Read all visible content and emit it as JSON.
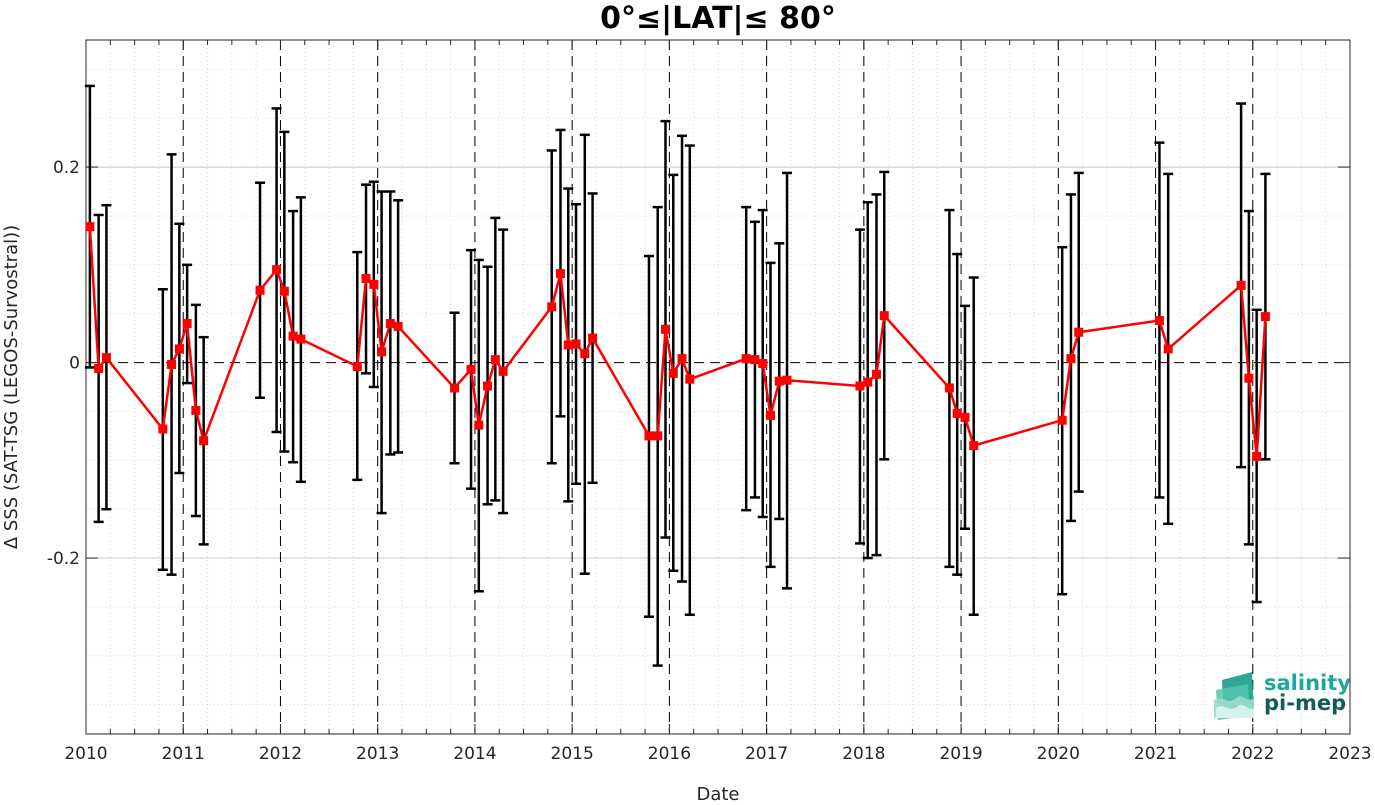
{
  "chart_data": {
    "type": "line",
    "title": "0°≤|LAT|≤ 80°",
    "xlabel": "Date",
    "ylabel": "Δ SSS (SAT-TSG (LEGOS-Survostral))",
    "xlim": [
      2010,
      2023
    ],
    "ylim": [
      -0.38,
      0.33
    ],
    "x_ticks": [
      2010,
      2011,
      2012,
      2013,
      2014,
      2015,
      2016,
      2017,
      2018,
      2019,
      2020,
      2021,
      2022,
      2023
    ],
    "x_tick_labels": [
      "2010",
      "2011",
      "2012",
      "2013",
      "2014",
      "2015",
      "2016",
      "2017",
      "2018",
      "2019",
      "2020",
      "2021",
      "2022",
      "2023"
    ],
    "y_ticks": [
      -0.2,
      0,
      0.2
    ],
    "y_tick_labels": [
      "-0.2",
      "0",
      "0.2"
    ],
    "grid": "minor dotted",
    "zero_line": "dashed",
    "year_lines": "dashed",
    "series": [
      {
        "color": "#ff0000",
        "marker": "square",
        "error_bar_color": "#000000",
        "points": [
          {
            "x": 2010.04,
            "y": 0.139,
            "lo": -0.005,
            "hi": 0.283
          },
          {
            "x": 2010.13,
            "y": -0.006,
            "lo": -0.163,
            "hi": 0.151
          },
          {
            "x": 2010.21,
            "y": 0.005,
            "lo": -0.15,
            "hi": 0.161
          },
          {
            "x": 2010.79,
            "y": -0.068,
            "lo": -0.212,
            "hi": 0.075
          },
          {
            "x": 2010.88,
            "y": -0.002,
            "lo": -0.217,
            "hi": 0.213
          },
          {
            "x": 2010.96,
            "y": 0.014,
            "lo": -0.113,
            "hi": 0.142
          },
          {
            "x": 2011.04,
            "y": 0.04,
            "lo": -0.021,
            "hi": 0.1
          },
          {
            "x": 2011.13,
            "y": -0.049,
            "lo": -0.157,
            "hi": 0.059
          },
          {
            "x": 2011.21,
            "y": -0.08,
            "lo": -0.186,
            "hi": 0.026
          },
          {
            "x": 2011.79,
            "y": 0.074,
            "lo": -0.036,
            "hi": 0.184
          },
          {
            "x": 2011.96,
            "y": 0.095,
            "lo": -0.071,
            "hi": 0.26
          },
          {
            "x": 2012.04,
            "y": 0.073,
            "lo": -0.091,
            "hi": 0.236
          },
          {
            "x": 2012.13,
            "y": 0.027,
            "lo": -0.102,
            "hi": 0.155
          },
          {
            "x": 2012.21,
            "y": 0.024,
            "lo": -0.122,
            "hi": 0.169
          },
          {
            "x": 2012.79,
            "y": -0.004,
            "lo": -0.12,
            "hi": 0.113
          },
          {
            "x": 2012.88,
            "y": 0.086,
            "lo": -0.011,
            "hi": 0.182
          },
          {
            "x": 2012.96,
            "y": 0.08,
            "lo": -0.025,
            "hi": 0.185
          },
          {
            "x": 2013.04,
            "y": 0.011,
            "lo": -0.154,
            "hi": 0.175
          },
          {
            "x": 2013.13,
            "y": 0.04,
            "lo": -0.094,
            "hi": 0.175
          },
          {
            "x": 2013.21,
            "y": 0.037,
            "lo": -0.092,
            "hi": 0.166
          },
          {
            "x": 2013.79,
            "y": -0.026,
            "lo": -0.103,
            "hi": 0.051
          },
          {
            "x": 2013.96,
            "y": -0.007,
            "lo": -0.129,
            "hi": 0.115
          },
          {
            "x": 2014.04,
            "y": -0.064,
            "lo": -0.234,
            "hi": 0.105
          },
          {
            "x": 2014.13,
            "y": -0.024,
            "lo": -0.145,
            "hi": 0.098
          },
          {
            "x": 2014.21,
            "y": 0.003,
            "lo": -0.141,
            "hi": 0.148
          },
          {
            "x": 2014.29,
            "y": -0.009,
            "lo": -0.154,
            "hi": 0.136
          },
          {
            "x": 2014.79,
            "y": 0.057,
            "lo": -0.103,
            "hi": 0.217
          },
          {
            "x": 2014.88,
            "y": 0.091,
            "lo": -0.055,
            "hi": 0.238
          },
          {
            "x": 2014.96,
            "y": 0.018,
            "lo": -0.142,
            "hi": 0.178
          },
          {
            "x": 2015.04,
            "y": 0.019,
            "lo": -0.124,
            "hi": 0.162
          },
          {
            "x": 2015.13,
            "y": 0.009,
            "lo": -0.216,
            "hi": 0.233
          },
          {
            "x": 2015.21,
            "y": 0.025,
            "lo": -0.123,
            "hi": 0.173
          },
          {
            "x": 2015.79,
            "y": -0.075,
            "lo": -0.26,
            "hi": 0.109
          },
          {
            "x": 2015.88,
            "y": -0.075,
            "lo": -0.31,
            "hi": 0.159
          },
          {
            "x": 2015.96,
            "y": 0.034,
            "lo": -0.179,
            "hi": 0.247
          },
          {
            "x": 2016.04,
            "y": -0.011,
            "lo": -0.213,
            "hi": 0.192
          },
          {
            "x": 2016.13,
            "y": 0.004,
            "lo": -0.224,
            "hi": 0.232
          },
          {
            "x": 2016.21,
            "y": -0.017,
            "lo": -0.258,
            "hi": 0.222
          },
          {
            "x": 2016.79,
            "y": 0.004,
            "lo": -0.151,
            "hi": 0.159
          },
          {
            "x": 2016.88,
            "y": 0.003,
            "lo": -0.138,
            "hi": 0.144
          },
          {
            "x": 2016.96,
            "y": -0.001,
            "lo": -0.158,
            "hi": 0.156
          },
          {
            "x": 2017.04,
            "y": -0.054,
            "lo": -0.209,
            "hi": 0.102
          },
          {
            "x": 2017.13,
            "y": -0.019,
            "lo": -0.16,
            "hi": 0.122
          },
          {
            "x": 2017.21,
            "y": -0.018,
            "lo": -0.231,
            "hi": 0.194
          },
          {
            "x": 2017.96,
            "y": -0.024,
            "lo": -0.185,
            "hi": 0.136
          },
          {
            "x": 2018.04,
            "y": -0.02,
            "lo": -0.2,
            "hi": 0.164
          },
          {
            "x": 2018.13,
            "y": -0.012,
            "lo": -0.197,
            "hi": 0.172
          },
          {
            "x": 2018.21,
            "y": 0.048,
            "lo": -0.099,
            "hi": 0.195
          },
          {
            "x": 2018.88,
            "y": -0.026,
            "lo": -0.209,
            "hi": 0.156
          },
          {
            "x": 2018.96,
            "y": -0.052,
            "lo": -0.217,
            "hi": 0.111
          },
          {
            "x": 2019.04,
            "y": -0.056,
            "lo": -0.17,
            "hi": 0.058
          },
          {
            "x": 2019.13,
            "y": -0.085,
            "lo": -0.258,
            "hi": 0.087
          },
          {
            "x": 2020.04,
            "y": -0.059,
            "lo": -0.237,
            "hi": 0.118
          },
          {
            "x": 2020.13,
            "y": 0.004,
            "lo": -0.162,
            "hi": 0.172
          },
          {
            "x": 2020.21,
            "y": 0.031,
            "lo": -0.132,
            "hi": 0.194
          },
          {
            "x": 2021.04,
            "y": 0.043,
            "lo": -0.138,
            "hi": 0.225
          },
          {
            "x": 2021.13,
            "y": 0.014,
            "lo": -0.165,
            "hi": 0.193
          },
          {
            "x": 2021.88,
            "y": 0.079,
            "lo": -0.107,
            "hi": 0.265
          },
          {
            "x": 2021.96,
            "y": -0.016,
            "lo": -0.186,
            "hi": 0.155
          },
          {
            "x": 2022.04,
            "y": -0.096,
            "lo": -0.245,
            "hi": 0.054
          },
          {
            "x": 2022.13,
            "y": 0.047,
            "lo": -0.099,
            "hi": 0.193
          }
        ]
      }
    ]
  },
  "logo": {
    "line1": "salinity",
    "line2": "pi-mep",
    "color1": "#1aa99a",
    "color2": "#135c55"
  }
}
